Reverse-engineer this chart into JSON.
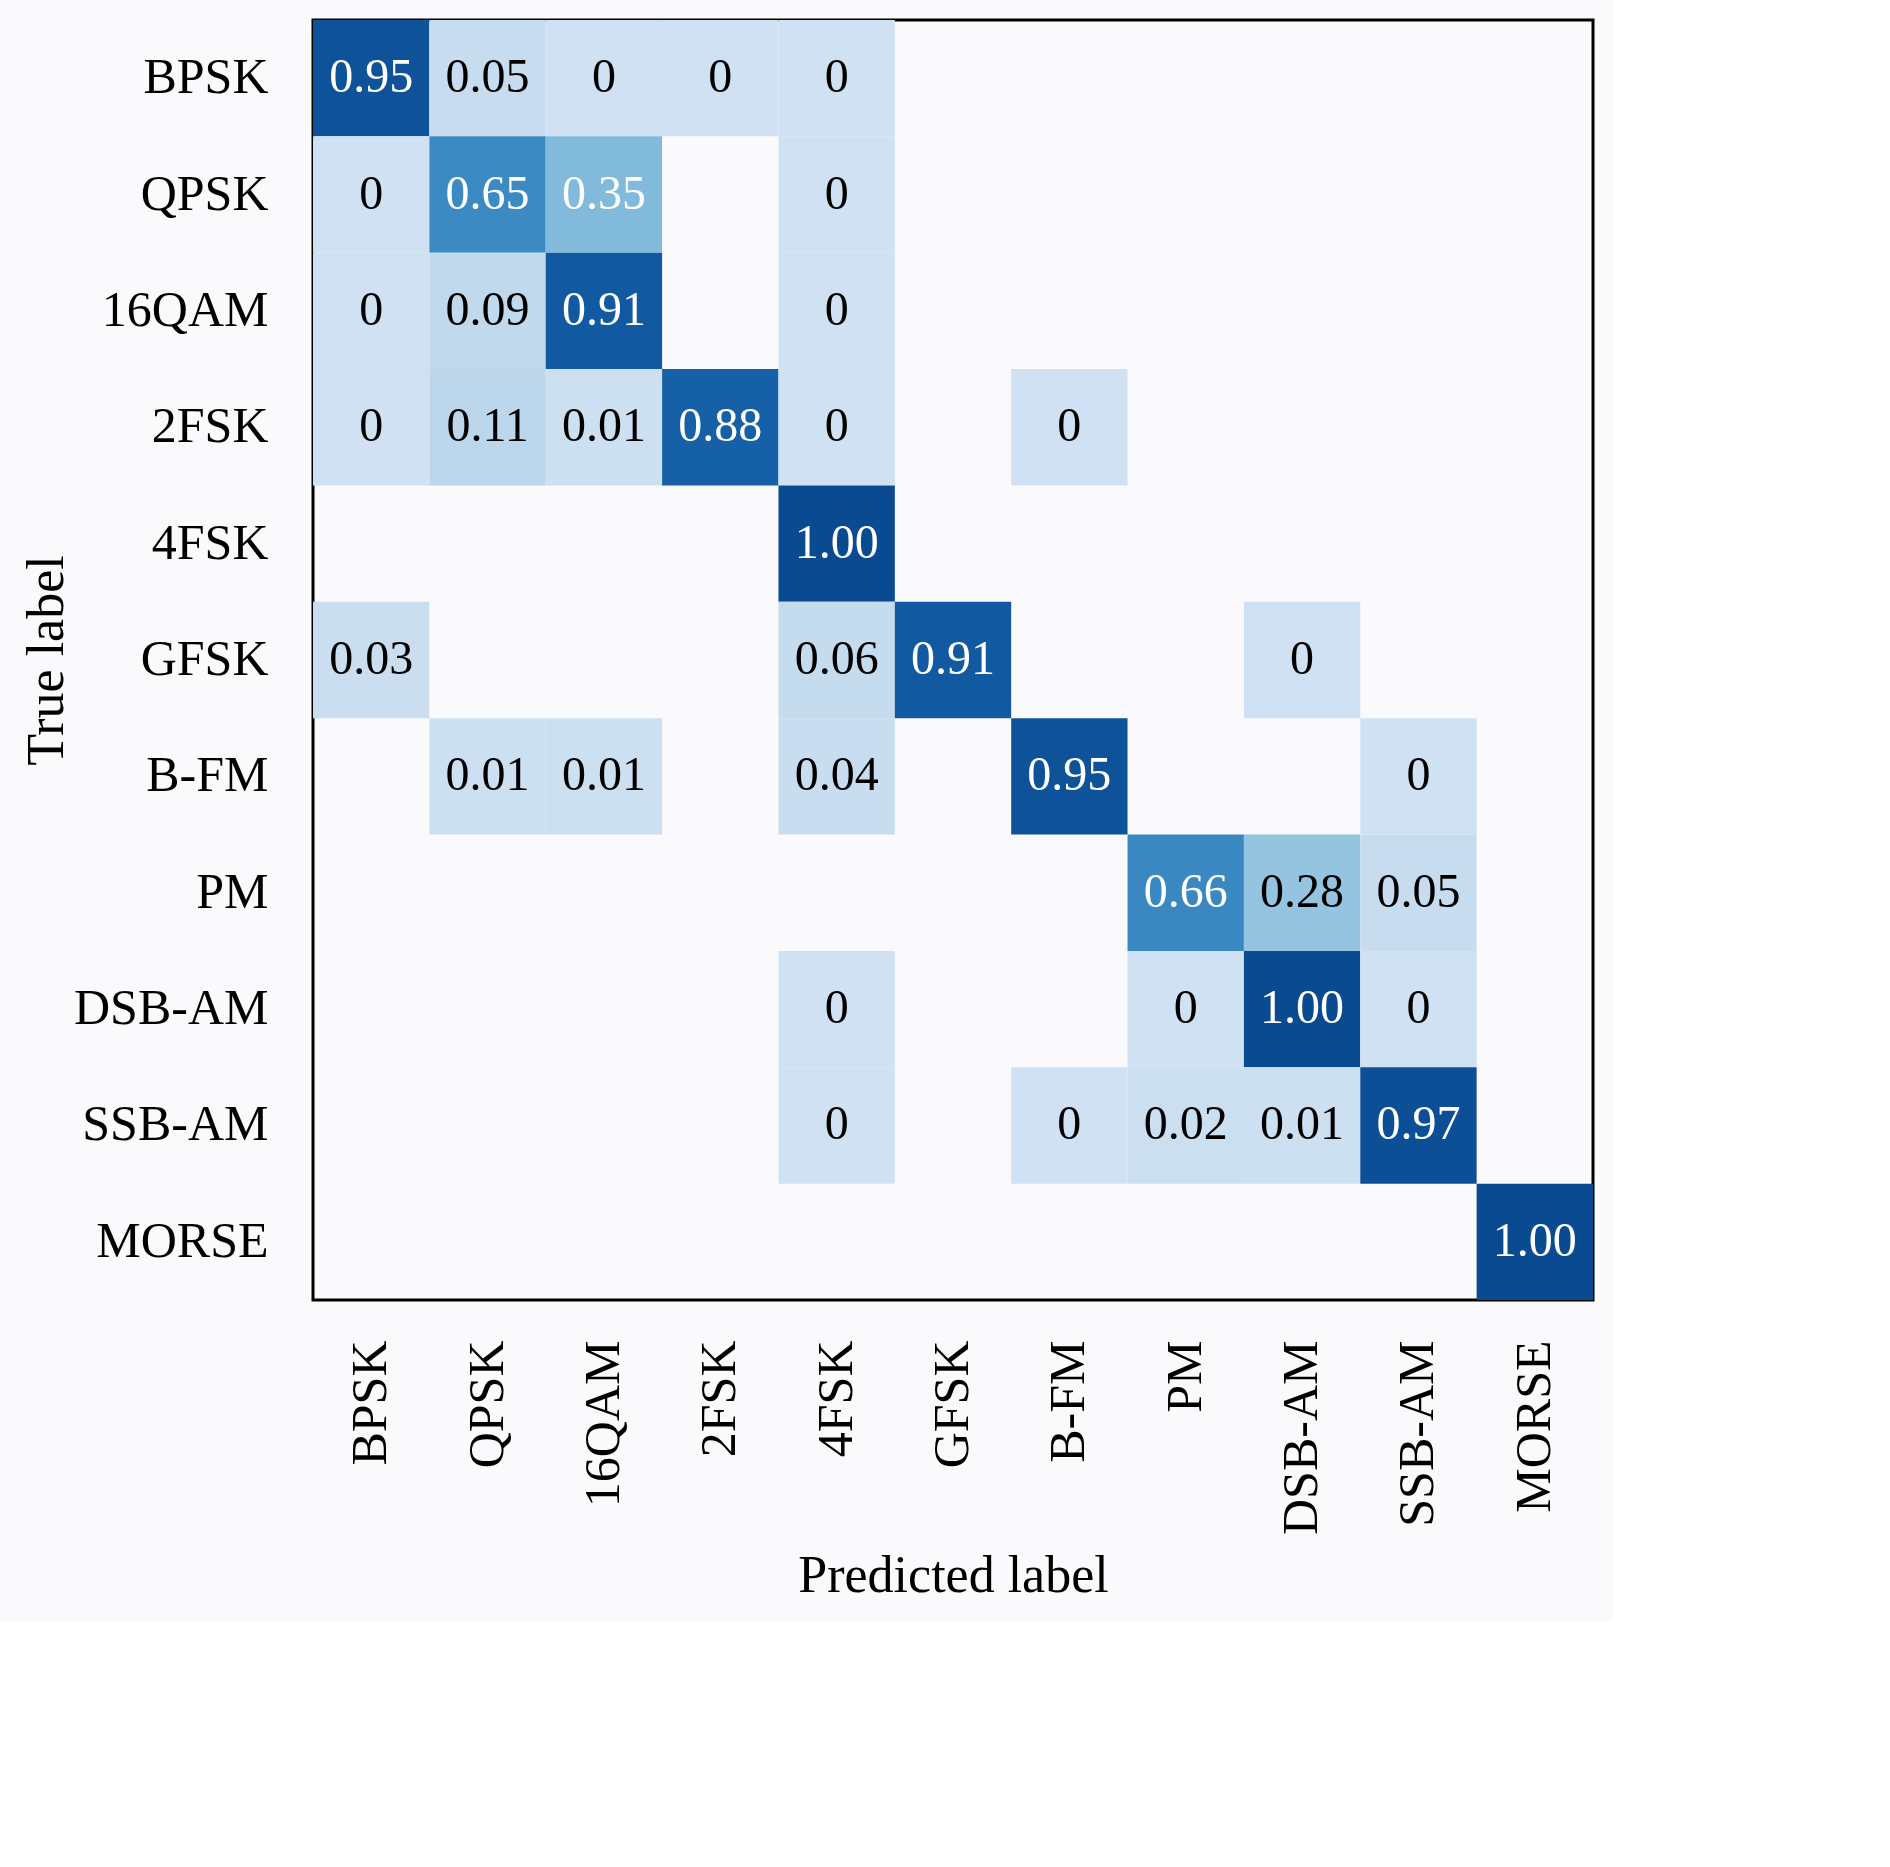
{
  "chart_data": {
    "type": "heatmap",
    "xlabel": "Predicted label",
    "ylabel": "True label",
    "categories": [
      "BPSK",
      "QPSK",
      "16QAM",
      "2FSK",
      "4FSK",
      "GFSK",
      "B-FM",
      "PM",
      "DSB-AM",
      "SSB-AM",
      "MORSE"
    ],
    "y_categories": [
      "BPSK",
      "QPSK",
      "16QAM",
      "2FSK",
      "4FSK",
      "GFSK",
      "B-FM",
      "PM",
      "DSB-AM",
      "SSB-AM",
      "MORSE"
    ],
    "cells": [
      [
        0.95,
        0.05,
        0,
        0,
        0,
        null,
        null,
        null,
        null,
        null,
        null
      ],
      [
        0,
        0.65,
        0.35,
        null,
        0,
        null,
        null,
        null,
        null,
        null,
        null
      ],
      [
        0,
        0.09,
        0.91,
        null,
        0,
        null,
        null,
        null,
        null,
        null,
        null
      ],
      [
        0,
        0.11,
        0.01,
        0.88,
        0,
        null,
        0,
        null,
        null,
        null,
        null
      ],
      [
        null,
        null,
        null,
        null,
        1.0,
        null,
        null,
        null,
        null,
        null,
        null
      ],
      [
        0.03,
        null,
        null,
        null,
        0.06,
        0.91,
        null,
        null,
        0,
        null,
        null
      ],
      [
        null,
        0.01,
        0.01,
        null,
        0.04,
        null,
        0.95,
        null,
        null,
        0,
        null
      ],
      [
        null,
        null,
        null,
        null,
        null,
        null,
        null,
        0.66,
        0.28,
        0.05,
        null
      ],
      [
        null,
        null,
        null,
        null,
        0,
        null,
        null,
        0,
        1.0,
        0,
        null
      ],
      [
        null,
        null,
        null,
        null,
        0,
        null,
        0,
        0.02,
        0.01,
        0.97,
        null
      ],
      [
        null,
        null,
        null,
        null,
        null,
        null,
        null,
        null,
        null,
        null,
        1.0
      ]
    ],
    "cell_labels": [
      [
        "0.95",
        "0.05",
        "0",
        "0",
        "0",
        null,
        null,
        null,
        null,
        null,
        null
      ],
      [
        "0",
        "0.65",
        "0.35",
        null,
        "0",
        null,
        null,
        null,
        null,
        null,
        null
      ],
      [
        "0",
        "0.09",
        "0.91",
        null,
        "0",
        null,
        null,
        null,
        null,
        null,
        null
      ],
      [
        "0",
        "0.11",
        "0.01",
        "0.88",
        "0",
        null,
        "0",
        null,
        null,
        null,
        null
      ],
      [
        null,
        null,
        null,
        null,
        "1.00",
        null,
        null,
        null,
        null,
        null,
        null
      ],
      [
        "0.03",
        null,
        null,
        null,
        "0.06",
        "0.91",
        null,
        null,
        "0",
        null,
        null
      ],
      [
        null,
        "0.01",
        "0.01",
        null,
        "0.04",
        null,
        "0.95",
        null,
        null,
        "0",
        null
      ],
      [
        null,
        null,
        null,
        null,
        null,
        null,
        null,
        "0.66",
        "0.28",
        "0.05",
        null
      ],
      [
        null,
        null,
        null,
        null,
        "0",
        null,
        null,
        "0",
        "1.00",
        "0",
        null
      ],
      [
        null,
        null,
        null,
        null,
        "0",
        null,
        "0",
        "0.02",
        "0.01",
        "0.97",
        null
      ],
      [
        null,
        null,
        null,
        null,
        null,
        null,
        null,
        null,
        null,
        null,
        "1.00"
      ]
    ]
  }
}
